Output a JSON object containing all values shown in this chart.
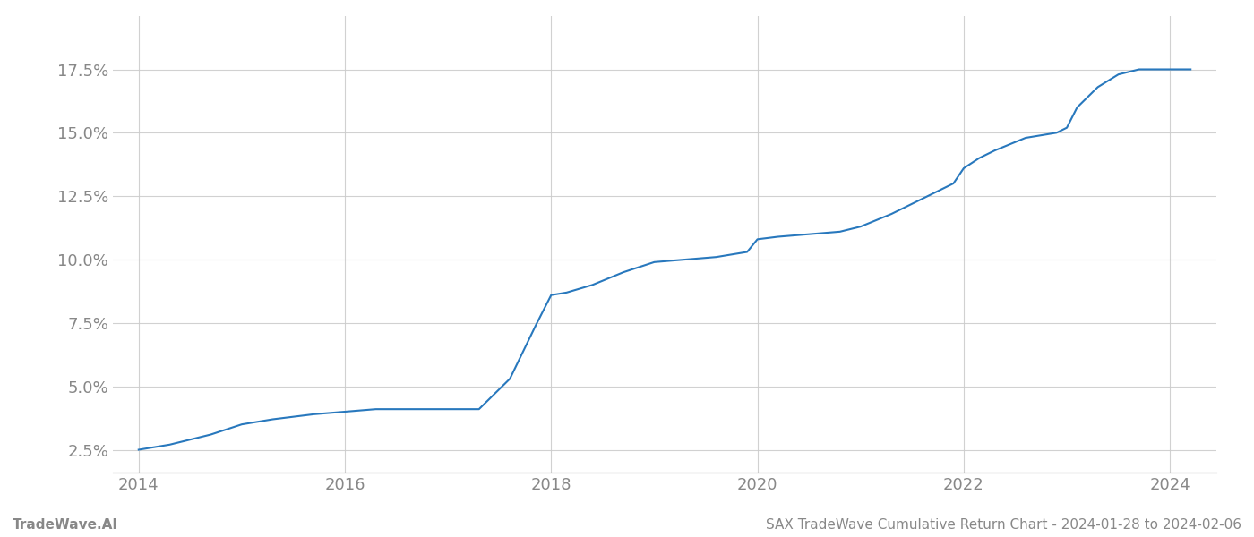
{
  "x": [
    2014.0,
    2014.3,
    2014.7,
    2015.0,
    2015.3,
    2015.7,
    2016.0,
    2016.3,
    2016.7,
    2017.0,
    2017.1,
    2017.3,
    2017.6,
    2017.85,
    2018.0,
    2018.15,
    2018.4,
    2018.7,
    2019.0,
    2019.3,
    2019.6,
    2019.9,
    2020.0,
    2020.2,
    2020.5,
    2020.8,
    2021.0,
    2021.3,
    2021.6,
    2021.9,
    2022.0,
    2022.15,
    2022.3,
    2022.6,
    2022.9,
    2023.0,
    2023.1,
    2023.3,
    2023.5,
    2023.7,
    2023.85,
    2024.0,
    2024.2
  ],
  "y": [
    0.025,
    0.027,
    0.031,
    0.035,
    0.037,
    0.039,
    0.04,
    0.041,
    0.041,
    0.041,
    0.041,
    0.041,
    0.053,
    0.074,
    0.086,
    0.087,
    0.09,
    0.095,
    0.099,
    0.1,
    0.101,
    0.103,
    0.108,
    0.109,
    0.11,
    0.111,
    0.113,
    0.118,
    0.124,
    0.13,
    0.136,
    0.14,
    0.143,
    0.148,
    0.15,
    0.152,
    0.16,
    0.168,
    0.173,
    0.175,
    0.175,
    0.175,
    0.175
  ],
  "line_color": "#2878bd",
  "line_width": 1.5,
  "background_color": "#ffffff",
  "grid_color": "#cccccc",
  "yticks": [
    0.025,
    0.05,
    0.075,
    0.1,
    0.125,
    0.15,
    0.175
  ],
  "ytick_labels": [
    "2.5%",
    "5.0%",
    "7.5%",
    "10.0%",
    "12.5%",
    "15.0%",
    "17.5%"
  ],
  "xticks": [
    2014,
    2016,
    2018,
    2020,
    2022,
    2024
  ],
  "xtick_labels": [
    "2014",
    "2016",
    "2018",
    "2020",
    "2022",
    "2024"
  ],
  "xlim": [
    2013.75,
    2024.45
  ],
  "ylim": [
    0.016,
    0.196
  ],
  "footer_left": "TradeWave.AI",
  "footer_right": "SAX TradeWave Cumulative Return Chart - 2024-01-28 to 2024-02-06",
  "tick_color": "#888888",
  "tick_fontsize": 13,
  "footer_fontsize": 11
}
